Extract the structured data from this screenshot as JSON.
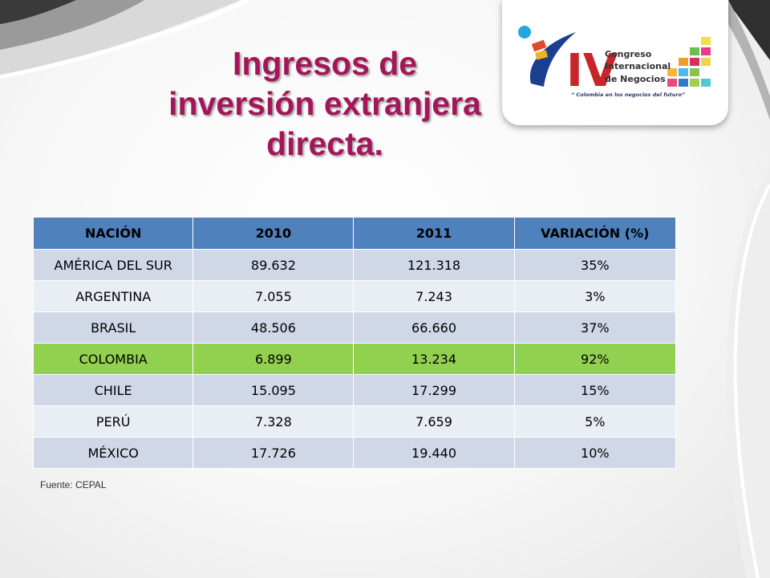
{
  "slide": {
    "title_lines": [
      "Ingresos de",
      "inversión extranjera",
      "directa."
    ],
    "source": "Fuente: CEPAL"
  },
  "logo": {
    "numeral": "IV",
    "line1": "Congreso",
    "line2": "Internacional",
    "line3": "de Negocios",
    "motto": "“ Colombia en los negocios del futuro”"
  },
  "table": {
    "headers": [
      "NACIÓN",
      "2010",
      "2011",
      "VARIACIÓN (%)"
    ],
    "rows": [
      [
        "AMÉRICA DEL SUR",
        "89.632",
        "121.318",
        "35%"
      ],
      [
        "ARGENTINA",
        "7.055",
        "7.243",
        "3%"
      ],
      [
        "BRASIL",
        "48.506",
        "66.660",
        "37%"
      ],
      [
        "COLOMBIA",
        "6.899",
        "13.234",
        "92%"
      ],
      [
        "CHILE",
        "15.095",
        "17.299",
        "15%"
      ],
      [
        "PERÚ",
        "7.328",
        "7.659",
        "5%"
      ],
      [
        "MÉXICO",
        "17.726",
        "19.440",
        "10%"
      ]
    ],
    "highlight_row": "COLOMBIA"
  },
  "colors": {
    "title": "#a3175a",
    "header_bg": "#4f81bd",
    "row_odd": "#d0d8e8",
    "row_even": "#e9edf4",
    "highlight": "#92d050"
  }
}
